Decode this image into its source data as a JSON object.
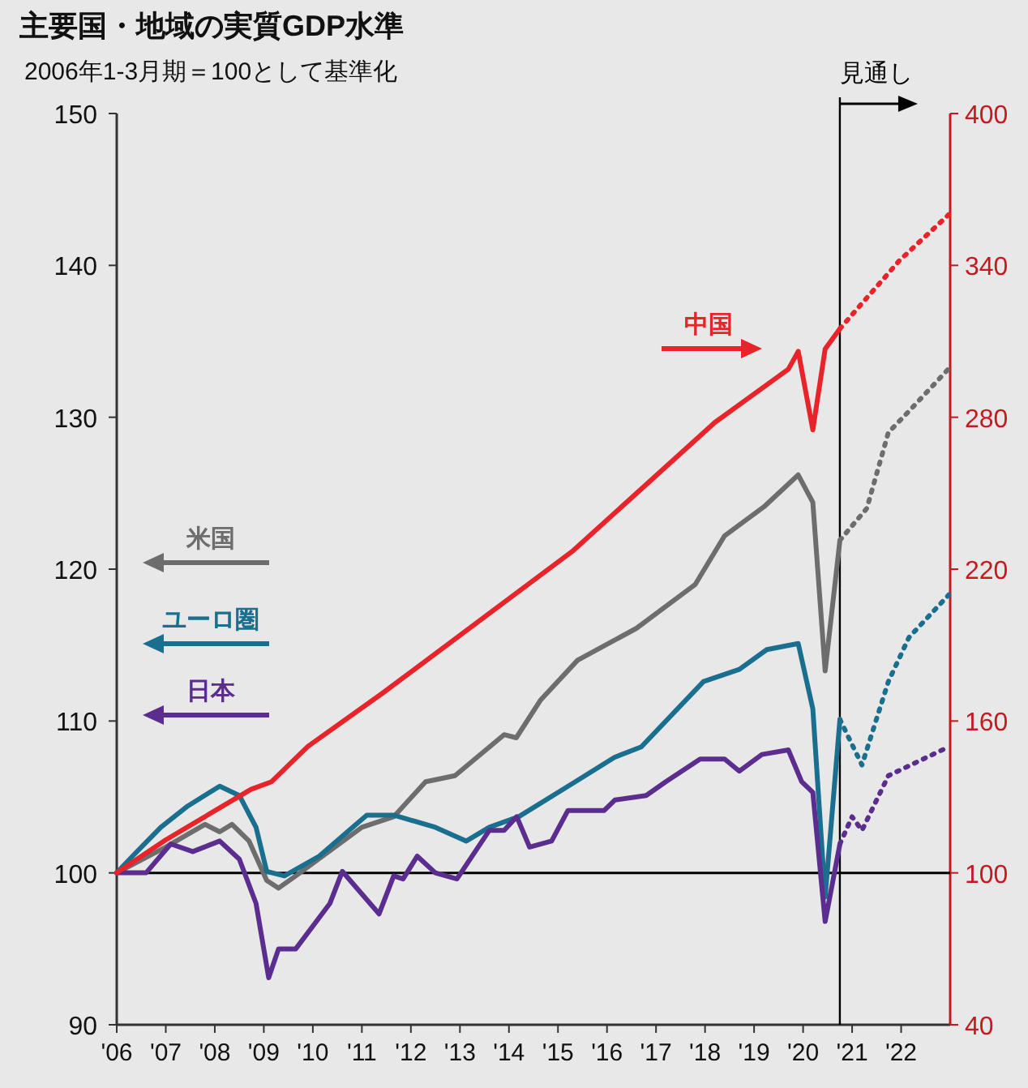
{
  "chart_data": {
    "type": "line",
    "title": "主要国・地域の実質GDP水準",
    "subtitle": "2006年1-3月期＝100として基準化",
    "xlim": [
      2006,
      2023
    ],
    "xticks": [
      {
        "value": 2006,
        "label": "'06"
      },
      {
        "value": 2007,
        "label": "'07"
      },
      {
        "value": 2008,
        "label": "'08"
      },
      {
        "value": 2009,
        "label": "'09"
      },
      {
        "value": 2010,
        "label": "'10"
      },
      {
        "value": 2011,
        "label": "'11"
      },
      {
        "value": 2012,
        "label": "'12"
      },
      {
        "value": 2013,
        "label": "'13"
      },
      {
        "value": 2014,
        "label": "'14"
      },
      {
        "value": 2015,
        "label": "'15"
      },
      {
        "value": 2016,
        "label": "'16"
      },
      {
        "value": 2017,
        "label": "'17"
      },
      {
        "value": 2018,
        "label": "'18"
      },
      {
        "value": 2019,
        "label": "'19"
      },
      {
        "value": 2020,
        "label": "'20"
      },
      {
        "value": 2021,
        "label": "'21"
      },
      {
        "value": 2022,
        "label": "'22"
      }
    ],
    "ylim": [
      90,
      150
    ],
    "yticks": [
      90,
      100,
      110,
      120,
      130,
      140,
      150
    ],
    "y2lim": [
      40,
      400
    ],
    "y2ticks": [
      40,
      100,
      160,
      220,
      280,
      340,
      400
    ],
    "series": [
      {
        "name": "米国",
        "color": "#6d6d6d",
        "x": [
          2006,
          2007.0,
          2007.8,
          2008.1,
          2008.35,
          2008.7,
          2009.06,
          2009.3,
          2009.65,
          2011.0,
          2011.65,
          2012.3,
          2012.9,
          2013.9,
          2014.15,
          2014.65,
          2015.4,
          2016.6,
          2017.8,
          2018.4,
          2019.2,
          2019.9,
          2020.2,
          2020.45,
          2020.75
        ],
        "values": [
          100,
          101.7,
          103.2,
          102.7,
          103.2,
          102.1,
          99.5,
          99.0,
          99.8,
          103.0,
          103.7,
          106.0,
          106.4,
          109.1,
          108.9,
          111.4,
          114.0,
          116.1,
          119.0,
          122.2,
          124.1,
          126.2,
          124.4,
          113.3,
          121.9
        ]
      },
      {
        "name": "ユーロ圏",
        "color": "#1a6f8f",
        "x": [
          2006,
          2006.35,
          2006.9,
          2007.45,
          2008.1,
          2008.5,
          2008.84,
          2009.06,
          2009.42,
          2010.13,
          2011.1,
          2011.65,
          2012.5,
          2013.13,
          2013.6,
          2014.2,
          2015.3,
          2016.15,
          2016.7,
          2017.97,
          2018.7,
          2019.26,
          2019.9,
          2020.2,
          2020.45,
          2020.75
        ],
        "values": [
          100,
          101.2,
          103.0,
          104.4,
          105.7,
          105.1,
          103.0,
          100.1,
          99.8,
          101.1,
          103.8,
          103.8,
          103.0,
          102.1,
          103.0,
          103.7,
          105.9,
          107.6,
          108.3,
          112.6,
          113.4,
          114.7,
          115.1,
          110.8,
          98.4,
          110.1
        ]
      },
      {
        "name": "日本",
        "color": "#5b2d8e",
        "x": [
          2006,
          2006.6,
          2007.1,
          2007.55,
          2008.1,
          2008.5,
          2008.84,
          2009.1,
          2009.3,
          2009.65,
          2010.35,
          2010.6,
          2011.35,
          2011.65,
          2011.84,
          2012.13,
          2012.5,
          2012.94,
          2013.6,
          2013.9,
          2014.16,
          2014.42,
          2014.87,
          2015.2,
          2015.94,
          2016.16,
          2016.8,
          2017.2,
          2017.9,
          2018.4,
          2018.7,
          2019.16,
          2019.7,
          2019.97,
          2020.2,
          2020.45,
          2020.75
        ],
        "values": [
          100,
          100,
          101.9,
          101.4,
          102.1,
          100.9,
          98.0,
          93.1,
          95.0,
          95.0,
          98.0,
          100.1,
          97.3,
          99.8,
          99.6,
          101.1,
          100.0,
          99.6,
          102.8,
          102.8,
          103.7,
          101.7,
          102.1,
          104.1,
          104.1,
          104.8,
          105.1,
          106.0,
          107.5,
          107.5,
          106.7,
          107.8,
          108.1,
          106.0,
          105.3,
          96.8,
          101.9
        ]
      },
      {
        "name": "中国",
        "color": "#e8242a",
        "axis": "y2",
        "x": [
          2006,
          2007.0,
          2008.74,
          2009.16,
          2009.9,
          2011.42,
          2015.29,
          2018.2,
          2019.7,
          2019.9,
          2020.2,
          2020.45,
          2020.75
        ],
        "values": [
          100,
          113,
          133,
          136,
          150,
          171,
          227,
          278,
          299,
          306,
          275,
          307,
          315
        ]
      },
      {
        "color": "#6d6d6d",
        "line_style": "dotted",
        "x": [
          2020.75,
          2021.3,
          2021.74,
          2022.16,
          2022.97
        ],
        "values": [
          121.9,
          124.0,
          129.0,
          130.4,
          133.2
        ]
      },
      {
        "color": "#1a6f8f",
        "line_style": "dotted",
        "x": [
          2020.75,
          2021.2,
          2021.74,
          2022.16,
          2022.97
        ],
        "values": [
          110.1,
          107.1,
          112.6,
          115.5,
          118.3
        ]
      },
      {
        "color": "#5b2d8e",
        "line_style": "dotted",
        "x": [
          2020.75,
          2021.0,
          2021.2,
          2021.74,
          2022.97
        ],
        "values": [
          101.9,
          103.7,
          102.8,
          106.4,
          108.3
        ]
      },
      {
        "color": "#e8242a",
        "line_style": "dotted",
        "axis": "y2",
        "x": [
          2020.75,
          2021.97,
          2022.97
        ],
        "values": [
          315,
          342,
          360
        ]
      }
    ],
    "ref_lines": [
      {
        "axis": "y",
        "value": 100,
        "color": "#000000"
      },
      {
        "axis": "x",
        "value": 2020.75,
        "label": "見通し",
        "color": "#000000"
      }
    ]
  }
}
